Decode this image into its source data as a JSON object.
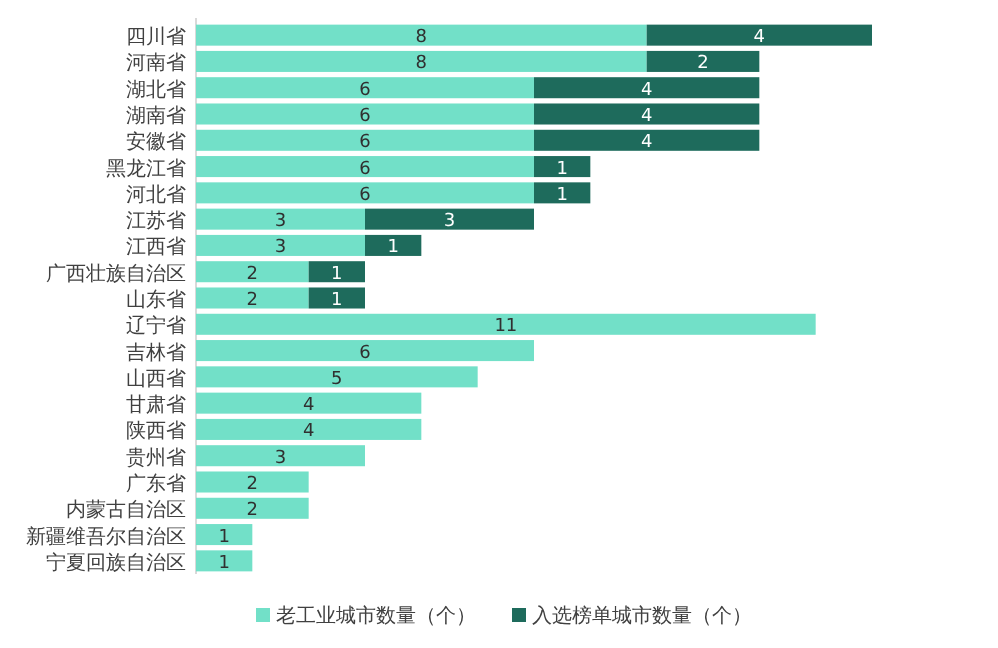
{
  "chart_data": {
    "type": "bar",
    "orientation": "horizontal",
    "stacked": true,
    "data_labels": true,
    "legend": "bottom",
    "categories": [
      "四川省",
      "河南省",
      "湖北省",
      "湖南省",
      "安徽省",
      "黑龙江省",
      "河北省",
      "江苏省",
      "江西省",
      "广西壮族自治区",
      "山东省",
      "辽宁省",
      "吉林省",
      "山西省",
      "甘肃省",
      "陕西省",
      "贵州省",
      "广东省",
      "内蒙古自治区",
      "新疆维吾尔自治区",
      "宁夏回族自治区"
    ],
    "series": [
      {
        "name": "老工业城市数量（个）",
        "color": "#72e0c8",
        "values": [
          8,
          8,
          6,
          6,
          6,
          6,
          6,
          3,
          3,
          2,
          2,
          11,
          6,
          5,
          4,
          4,
          3,
          2,
          2,
          1,
          1
        ]
      },
      {
        "name": "入选榜单城市数量（个）",
        "color": "#1e6b5c",
        "values": [
          4,
          2,
          4,
          4,
          4,
          1,
          1,
          3,
          1,
          1,
          1,
          null,
          null,
          null,
          null,
          null,
          null,
          null,
          null,
          null,
          null
        ]
      }
    ]
  }
}
